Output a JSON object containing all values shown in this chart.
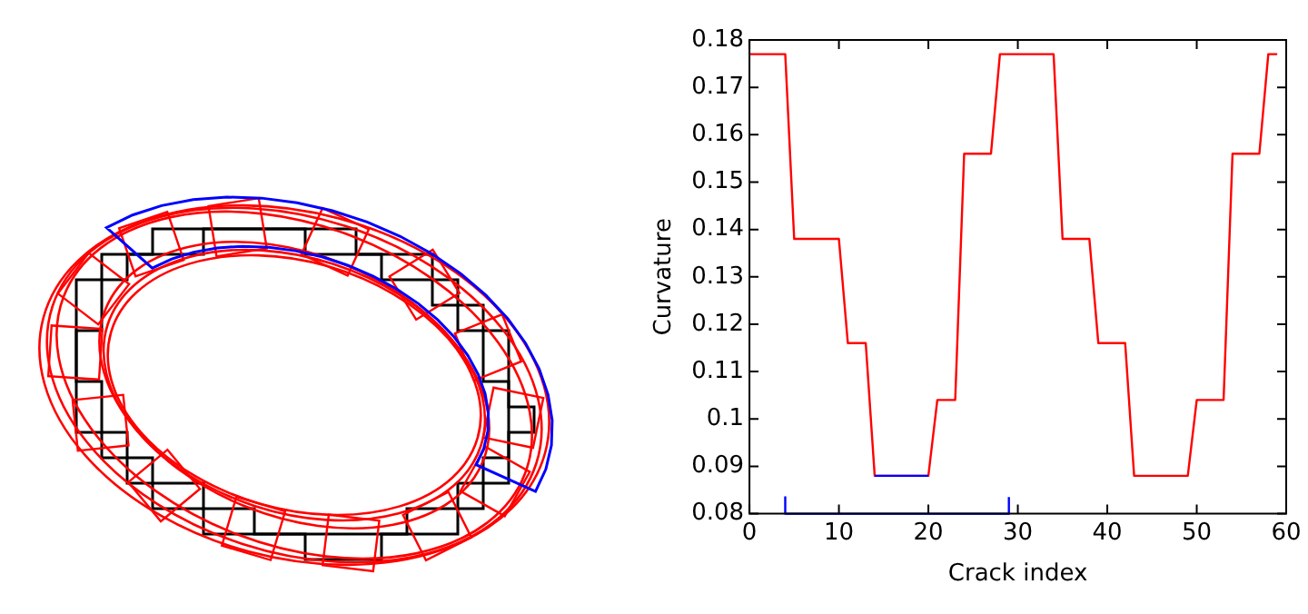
{
  "chart_data": {
    "type": "line",
    "xlabel": "Crack index",
    "ylabel": "Curvature",
    "xlim": [
      0,
      60
    ],
    "xticks": [
      0,
      10,
      20,
      30,
      40,
      50,
      60
    ],
    "ylim": [
      0.08,
      0.18
    ],
    "yticks": [
      0.08,
      0.09,
      {
        "value": 0.1,
        "label": "0.1"
      },
      0.11,
      0.12,
      0.13,
      0.14,
      0.15,
      0.16,
      0.17,
      0.18
    ],
    "grid": false,
    "legend": false,
    "marker": "none",
    "line_style": "solid",
    "series": [
      {
        "color": "#ff0000",
        "x": [
          0,
          4,
          5,
          10,
          11,
          13,
          14,
          20,
          21,
          23,
          24,
          27,
          28,
          34,
          35,
          38,
          39,
          42,
          43,
          49,
          50,
          53,
          54,
          57,
          58,
          59
        ],
        "values": [
          0.177,
          0.177,
          0.138,
          0.138,
          0.116,
          0.116,
          0.088,
          0.088,
          0.104,
          0.104,
          0.156,
          0.156,
          0.177,
          0.177,
          0.138,
          0.138,
          0.116,
          0.116,
          0.088,
          0.088,
          0.104,
          0.104,
          0.156,
          0.156,
          0.177,
          0.177
        ]
      },
      {
        "color": "#0000ff",
        "x": [
          14,
          20
        ],
        "values": [
          0.088,
          0.088
        ]
      },
      {
        "color": "#0000ff",
        "x": [
          4,
          4,
          29,
          29
        ],
        "values": [
          0.0835,
          0.08,
          0.08,
          0.0835
        ]
      }
    ]
  }
}
